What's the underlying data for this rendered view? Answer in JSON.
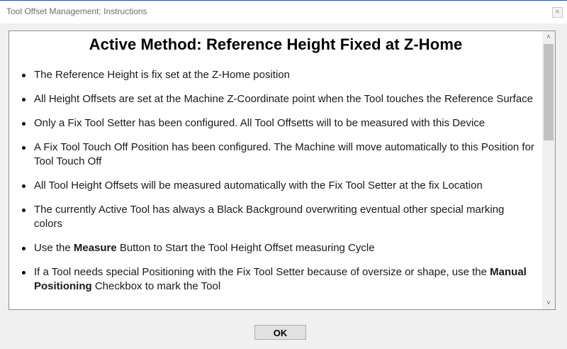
{
  "window": {
    "title": "Tool Offset Management: Instructions",
    "close_glyph": "×"
  },
  "content": {
    "heading": "Active Method: Reference Height Fixed at Z-Home",
    "bullets": [
      [
        {
          "text": "The Reference Height is fix set at the Z-Home position"
        }
      ],
      [
        {
          "text": "All Height Offsets are set at the Machine Z-Coordinate point when the Tool touches the Reference Surface"
        }
      ],
      [
        {
          "text": "Only a Fix Tool Setter has been configured. All Tool Offsetts will to be measured with this Device"
        }
      ],
      [
        {
          "text": "A Fix Tool Touch Off Position has been configured. The Machine will move automatically to this Position for Tool Touch Off"
        }
      ],
      [
        {
          "text": "All Tool Height Offsets will be measured automatically with the Fix Tool Setter at the fix Location"
        }
      ],
      [
        {
          "text": "The currently Active Tool has always a Black Background overwriting eventual other special marking colors"
        }
      ],
      [
        {
          "text": "Use the "
        },
        {
          "text": "Measure",
          "bold": true
        },
        {
          "text": " Button to Start the Tool Height Offset measuring Cycle"
        }
      ],
      [
        {
          "text": "If a Tool needs special Positioning with the Fix Tool Setter because of oversize or shape, use the "
        },
        {
          "text": "Manual Positioning",
          "bold": true
        },
        {
          "text": " Checkbox to mark the Tool"
        }
      ]
    ]
  },
  "scrollbar": {
    "up_glyph": "˄",
    "down_glyph": "˅"
  },
  "buttons": {
    "ok_label": "OK"
  }
}
